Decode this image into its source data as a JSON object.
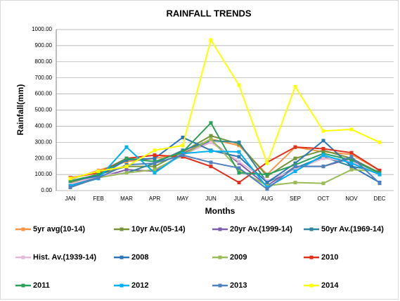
{
  "chart_data": {
    "type": "line",
    "title": "RAINFALL TRENDS",
    "x_label": "Months",
    "y_label": "Rainfall(mm)",
    "categories": [
      "JAN",
      "FEB",
      "MAR",
      "APR",
      "MAY",
      "JUN",
      "JUL",
      "AUG",
      "SEP",
      "OCT",
      "NOV",
      "DEC"
    ],
    "ylim": [
      0,
      1000
    ],
    "yticks": [
      {
        "value": 0,
        "label": "0.00"
      },
      {
        "value": 100,
        "label": "100.00"
      },
      {
        "value": 200,
        "label": "200.00"
      },
      {
        "value": 300,
        "label": "300.00"
      },
      {
        "value": 400,
        "label": "400.00"
      },
      {
        "value": 500,
        "label": "500.00"
      },
      {
        "value": 600,
        "label": "600.00"
      },
      {
        "value": 700,
        "label": "700.00"
      },
      {
        "value": 800,
        "label": "800.00"
      },
      {
        "value": 900,
        "label": "900.00"
      },
      {
        "value": 1000,
        "label": "1000.00"
      }
    ],
    "grid": true,
    "series": [
      {
        "name": "5yr avg(10-14)",
        "color": "#f79646",
        "values": [
          70,
          125,
          180,
          200,
          230,
          320,
          280,
          100,
          270,
          240,
          225,
          125
        ]
      },
      {
        "name": "10yr Av.(05-14)",
        "color": "#77933c",
        "values": [
          50,
          100,
          150,
          150,
          240,
          340,
          290,
          90,
          200,
          250,
          200,
          110
        ]
      },
      {
        "name": "20yr Av.(1999-14)",
        "color": "#7f5fa8",
        "values": [
          40,
          80,
          130,
          120,
          230,
          310,
          170,
          30,
          150,
          150,
          200,
          100
        ]
      },
      {
        "name": "50yr Av.(1969-14)",
        "color": "#31859c",
        "values": [
          30,
          90,
          110,
          170,
          250,
          310,
          300,
          50,
          140,
          210,
          150,
          120
        ]
      },
      {
        "name": "Hist. Av.(1939-14)",
        "color": "#e6b9d8",
        "values": [
          40,
          90,
          110,
          130,
          220,
          300,
          180,
          60,
          130,
          200,
          180,
          100
        ]
      },
      {
        "name": "2008",
        "color": "#2e75b6",
        "values": [
          60,
          90,
          190,
          200,
          330,
          250,
          210,
          50,
          170,
          310,
          150,
          50
        ]
      },
      {
        "name": "2009",
        "color": "#9bbb59",
        "values": [
          20,
          80,
          110,
          130,
          220,
          320,
          130,
          30,
          50,
          45,
          130,
          120
        ]
      },
      {
        "name": "2010",
        "color": "#e0301e",
        "values": [
          80,
          110,
          200,
          220,
          210,
          150,
          50,
          175,
          270,
          260,
          235,
          125
        ]
      },
      {
        "name": "2011",
        "color": "#2ca05a",
        "values": [
          60,
          100,
          200,
          180,
          240,
          420,
          110,
          100,
          160,
          230,
          190,
          110
        ]
      },
      {
        "name": "2012",
        "color": "#00b0f0",
        "values": [
          30,
          75,
          270,
          110,
          230,
          245,
          240,
          20,
          120,
          220,
          170,
          100
        ]
      },
      {
        "name": "2013",
        "color": "#4f81bd",
        "values": [
          20,
          80,
          160,
          170,
          220,
          175,
          140,
          10,
          150,
          150,
          210,
          45
        ]
      },
      {
        "name": "2014",
        "color": "#ffff00",
        "values": [
          75,
          120,
          150,
          250,
          280,
          935,
          655,
          170,
          645,
          370,
          380,
          300
        ]
      }
    ]
  }
}
